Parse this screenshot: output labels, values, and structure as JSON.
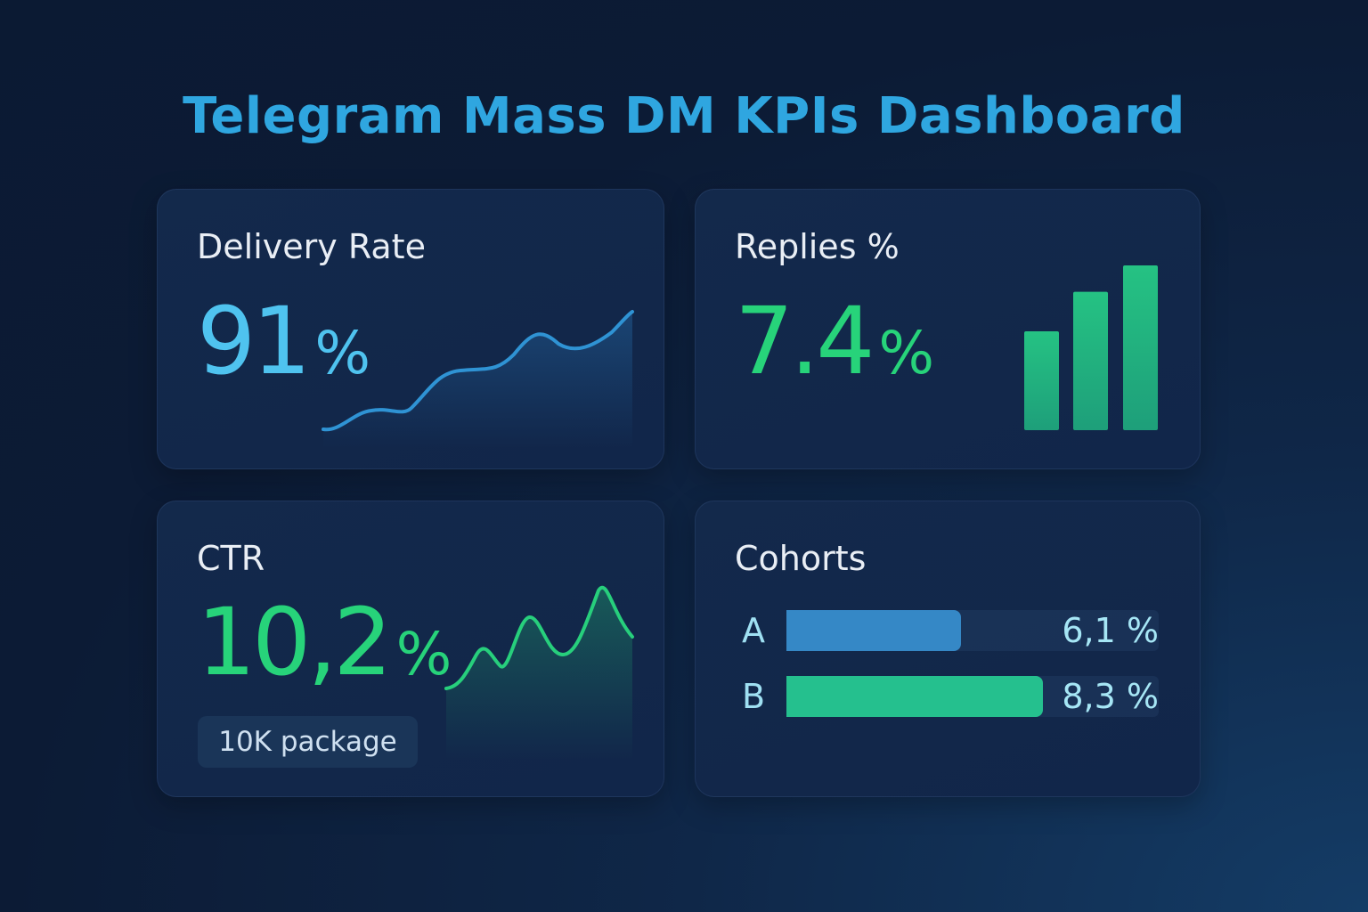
{
  "title": "Telegram Mass DM KPIs Dashboard",
  "colors": {
    "title": "#2fa6e0",
    "delivery": "#4fc3ef",
    "green": "#27d37a",
    "cohort_a": "#3588c6",
    "cohort_b": "#25c08e"
  },
  "delivery": {
    "label": "Delivery Rate",
    "value": "91",
    "unit": "%"
  },
  "replies": {
    "label": "Replies %",
    "value": "7.4",
    "unit": "%",
    "bars": [
      0.6,
      0.84,
      1.0
    ]
  },
  "ctr": {
    "label": "CTR",
    "value": "10,2",
    "unit": "%",
    "badge": "10K package"
  },
  "cohorts": {
    "label": "Cohorts",
    "items": [
      {
        "name": "A",
        "value": "6,1 %",
        "fill": 0.47
      },
      {
        "name": "B",
        "value": "8,3 %",
        "fill": 0.69
      }
    ]
  }
}
